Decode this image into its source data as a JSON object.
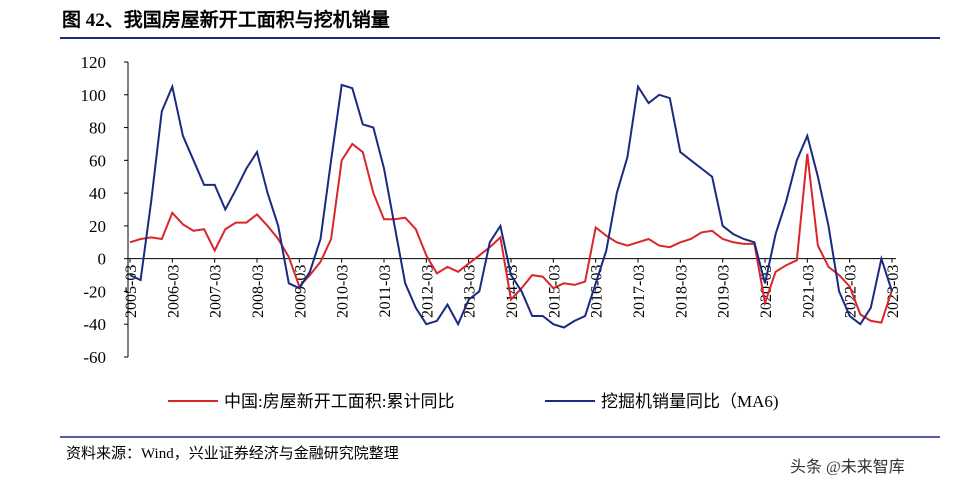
{
  "chart_data": {
    "type": "line",
    "title": "图 42、我国房屋新开工面积与挖机销量",
    "x": [
      "2005-03",
      "2005-06",
      "2005-09",
      "2005-12",
      "2006-03",
      "2006-06",
      "2006-09",
      "2006-12",
      "2007-03",
      "2007-06",
      "2007-09",
      "2007-12",
      "2008-03",
      "2008-06",
      "2008-09",
      "2008-12",
      "2009-03",
      "2009-06",
      "2009-09",
      "2009-12",
      "2010-03",
      "2010-06",
      "2010-09",
      "2010-12",
      "2011-03",
      "2011-06",
      "2011-09",
      "2011-12",
      "2012-03",
      "2012-06",
      "2012-09",
      "2012-12",
      "2013-03",
      "2013-06",
      "2013-09",
      "2013-12",
      "2014-03",
      "2014-06",
      "2014-09",
      "2014-12",
      "2015-03",
      "2015-06",
      "2015-09",
      "2015-12",
      "2016-03",
      "2016-06",
      "2016-09",
      "2016-12",
      "2017-03",
      "2017-06",
      "2017-09",
      "2017-12",
      "2018-03",
      "2018-06",
      "2018-09",
      "2018-12",
      "2019-03",
      "2019-06",
      "2019-09",
      "2019-12",
      "2020-03",
      "2020-06",
      "2020-09",
      "2020-12",
      "2021-03",
      "2021-06",
      "2021-09",
      "2021-12",
      "2022-03",
      "2022-06",
      "2022-09",
      "2022-12",
      "2023-03"
    ],
    "series": [
      {
        "name": "中国:房屋新开工面积:累计同比",
        "color": "#d9262b",
        "values": [
          10,
          12,
          13,
          12,
          28,
          21,
          17,
          18,
          5,
          18,
          22,
          22,
          27,
          20,
          12,
          1,
          -17,
          -10,
          -2,
          12,
          60,
          70,
          65,
          40,
          24,
          24,
          25,
          18,
          2,
          -9,
          -5,
          -8,
          -3,
          2,
          7,
          13,
          -25,
          -18,
          -10,
          -11,
          -18,
          -15,
          -16,
          -14,
          19,
          14,
          10,
          8,
          10,
          12,
          8,
          7,
          10,
          12,
          16,
          17,
          12,
          10,
          9,
          9,
          -27,
          -8,
          -4,
          -1,
          64,
          8,
          -5,
          -10,
          -17,
          -34,
          -38,
          -39,
          -19
        ]
      },
      {
        "name": "挖掘机销量同比（MA6)",
        "color": "#1a2a80",
        "values": [
          -10,
          -13,
          35,
          90,
          105,
          75,
          60,
          45,
          45,
          30,
          42,
          55,
          65,
          40,
          20,
          -15,
          -18,
          -8,
          12,
          60,
          106,
          104,
          82,
          80,
          55,
          20,
          -15,
          -30,
          -40,
          -38,
          -28,
          -40,
          -25,
          -20,
          10,
          20,
          -10,
          -20,
          -35,
          -35,
          -40,
          -42,
          -38,
          -35,
          -15,
          5,
          40,
          62,
          105,
          95,
          100,
          98,
          65,
          60,
          55,
          50,
          20,
          15,
          12,
          10,
          -15,
          15,
          35,
          60,
          75,
          50,
          20,
          -20,
          -35,
          -40,
          -30,
          0,
          -20
        ]
      }
    ],
    "xlim": [
      "2005-03",
      "2023-03"
    ],
    "xticks": [
      "2005-03",
      "2006-03",
      "2007-03",
      "2008-03",
      "2009-03",
      "2010-03",
      "2011-03",
      "2012-03",
      "2013-03",
      "2014-03",
      "2015-03",
      "2016-03",
      "2017-03",
      "2018-03",
      "2019-03",
      "2020-03",
      "2021-03",
      "2022-03",
      "2023-03"
    ],
    "ylim": [
      -60,
      120
    ],
    "yticks": [
      -60,
      -40,
      -20,
      0,
      20,
      40,
      60,
      80,
      100,
      120
    ]
  },
  "source": "资料来源：Wind，兴业证券经济与金融研究院整理",
  "watermark": "头条 @未来智库"
}
